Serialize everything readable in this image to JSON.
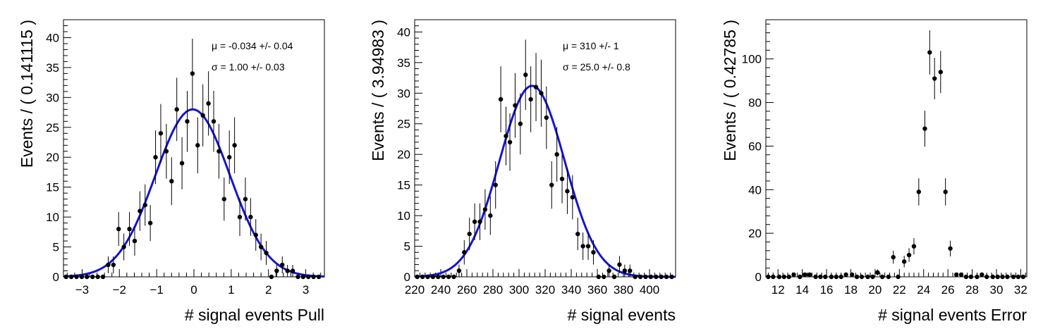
{
  "chart_data": [
    {
      "type": "scatter",
      "xlabel": "# signal events Pull",
      "ylabel": "Events / ( 0.141115 )",
      "xlim": [
        -3.5,
        3.5
      ],
      "ylim": [
        0,
        43
      ],
      "xticks": [
        -3,
        -2,
        -1,
        0,
        1,
        2,
        3
      ],
      "yticks": [
        0,
        5,
        10,
        15,
        20,
        25,
        30,
        35,
        40
      ],
      "annotations": [
        "μ = -0.034 +/- 0.04",
        "σ =  1.00 +/- 0.03"
      ],
      "x": [
        -3.43,
        -3.29,
        -3.15,
        -3.01,
        -2.87,
        -2.72,
        -2.58,
        -2.44,
        -2.3,
        -2.16,
        -2.02,
        -1.88,
        -1.73,
        -1.59,
        -1.45,
        -1.31,
        -1.17,
        -1.03,
        -0.89,
        -0.74,
        -0.6,
        -0.46,
        -0.32,
        -0.18,
        -0.04,
        0.1,
        0.24,
        0.39,
        0.53,
        0.67,
        0.81,
        0.95,
        1.09,
        1.23,
        1.38,
        1.52,
        1.66,
        1.8,
        1.94,
        2.08,
        2.22,
        2.37,
        2.51,
        2.65,
        2.79,
        2.93,
        3.07,
        3.21,
        3.35
      ],
      "y": [
        0,
        0,
        0,
        0,
        0,
        0,
        0,
        0,
        2,
        2,
        8,
        5,
        8,
        6,
        11,
        12,
        9,
        20,
        24,
        21,
        16,
        28,
        19,
        26,
        34,
        22,
        27,
        29,
        26,
        21,
        13,
        20,
        22,
        10,
        13,
        10,
        7,
        5,
        4,
        0,
        1,
        2,
        1,
        1,
        0,
        0,
        0,
        0,
        0
      ],
      "fit": {
        "name": "gaussian",
        "mu": -0.034,
        "sigma": 1.0,
        "amplitude": 28
      }
    },
    {
      "type": "scatter",
      "xlabel": "# signal events",
      "ylabel": "Events / ( 3.94983 )",
      "xlim": [
        220,
        420
      ],
      "ylim": [
        0,
        42
      ],
      "xticks": [
        220,
        240,
        260,
        280,
        300,
        320,
        340,
        360,
        380,
        400
      ],
      "yticks": [
        0,
        5,
        10,
        15,
        20,
        25,
        30,
        35,
        40
      ],
      "annotations": [
        "μ =  310 +/- 1",
        "σ =  25.0 +/- 0.8"
      ],
      "x": [
        222,
        226,
        230,
        234,
        238,
        242,
        246,
        250,
        254,
        258,
        262,
        266,
        270,
        274,
        278,
        282,
        286,
        290,
        293,
        297,
        301,
        305,
        309,
        313,
        317,
        321,
        325,
        329,
        333,
        337,
        341,
        345,
        349,
        353,
        357,
        361,
        365,
        369,
        373,
        377,
        381,
        385,
        389,
        393,
        397,
        401,
        405,
        409,
        413,
        417
      ],
      "y": [
        0,
        0,
        0,
        0,
        0,
        0,
        0,
        0,
        1,
        4,
        7,
        9,
        9,
        11,
        10,
        15,
        29,
        23,
        22,
        28,
        25,
        33,
        29,
        31,
        30,
        26,
        15,
        20,
        16,
        14,
        13,
        7,
        5,
        5,
        4,
        0,
        0,
        1,
        0,
        2,
        1,
        1,
        0,
        0,
        0,
        0,
        0,
        0,
        0,
        0
      ],
      "fit": {
        "name": "gaussian",
        "mu": 310,
        "sigma": 25.0,
        "amplitude": 31.2
      }
    },
    {
      "type": "scatter",
      "xlabel": "# signal events Error",
      "ylabel": "Events / ( 0.42785 )",
      "xlim": [
        11,
        32.5
      ],
      "ylim": [
        0,
        118
      ],
      "xticks": [
        12,
        14,
        16,
        18,
        20,
        22,
        24,
        26,
        28,
        30,
        32
      ],
      "yticks": [
        0,
        20,
        40,
        60,
        80,
        100
      ],
      "annotations": [],
      "x": [
        11.2,
        11.6,
        12.1,
        12.5,
        12.9,
        13.3,
        13.8,
        14.2,
        14.6,
        15.1,
        15.5,
        15.9,
        16.4,
        16.8,
        17.2,
        17.6,
        18.1,
        18.5,
        18.9,
        19.4,
        19.8,
        20.2,
        20.6,
        21.1,
        21.5,
        21.9,
        22.4,
        22.8,
        23.2,
        23.6,
        24.1,
        24.5,
        24.9,
        25.4,
        25.8,
        26.2,
        26.7,
        27.1,
        27.5,
        27.9,
        28.4,
        28.8,
        29.2,
        29.7,
        30.1,
        30.5,
        30.9,
        31.4,
        31.8,
        32.2
      ],
      "y": [
        0,
        0,
        0,
        0,
        0,
        1,
        0,
        1,
        1,
        0,
        0,
        0,
        0,
        0,
        0,
        1,
        1,
        0,
        0,
        0,
        0,
        2,
        0,
        0,
        9,
        0,
        7,
        10,
        14,
        39,
        68,
        103,
        91,
        94,
        39,
        13,
        1,
        1,
        0,
        0,
        0,
        1,
        0,
        0,
        0,
        0,
        0,
        0,
        0,
        0
      ]
    }
  ]
}
